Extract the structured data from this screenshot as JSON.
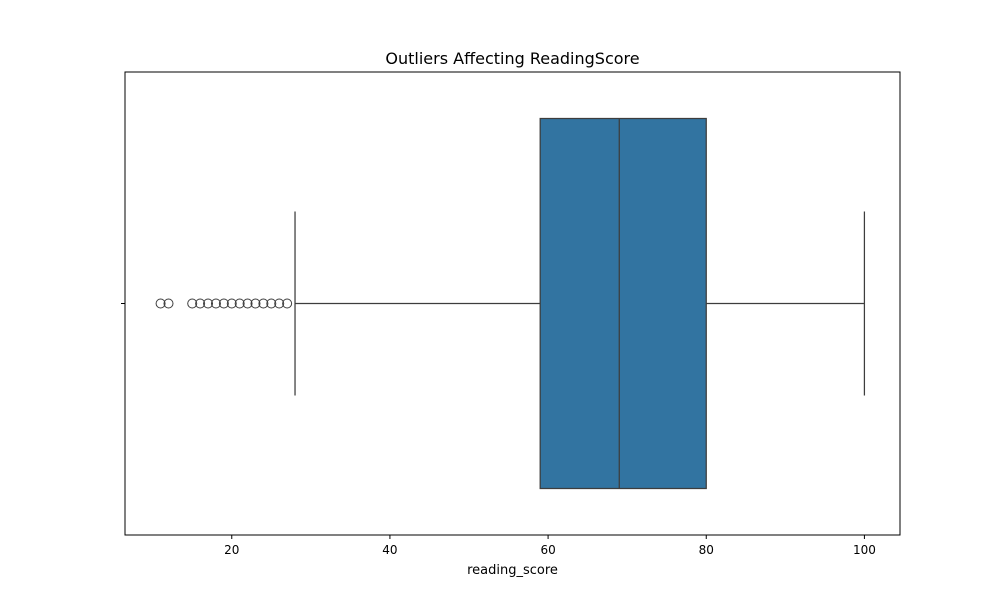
{
  "chart_data": {
    "type": "box",
    "title": "Outliers Affecting ReadingScore",
    "xlabel": "reading_score",
    "ylabel": "",
    "xlim": [
      6.5,
      104.5
    ],
    "x_ticks": [
      20,
      40,
      60,
      80,
      100
    ],
    "x_tick_labels": [
      "20",
      "40",
      "60",
      "80",
      "100"
    ],
    "grid": false,
    "legend": "none",
    "colors": {
      "box_fill": "#3274a1",
      "line": "#3d3d3d",
      "frame": "#000000",
      "background": "#ffffff"
    },
    "box": {
      "whisker_low": 28,
      "q1": 59,
      "median": 69,
      "q3": 80,
      "whisker_high": 100
    },
    "outliers": [
      11,
      12,
      15,
      16,
      17,
      18,
      19,
      20,
      21,
      22,
      23,
      24,
      25,
      26,
      27
    ]
  }
}
